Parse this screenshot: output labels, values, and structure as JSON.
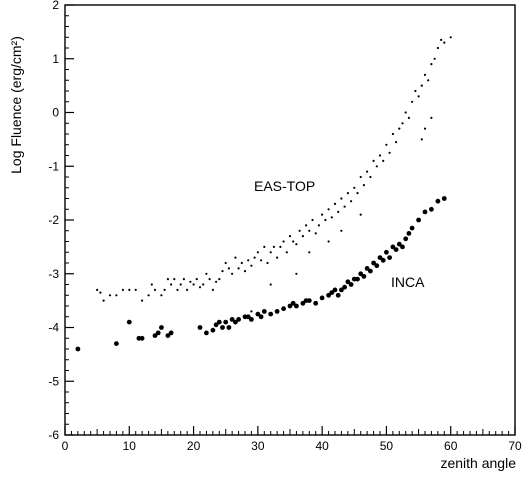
{
  "chart_data": {
    "type": "scatter",
    "xlabel": "zenith angle",
    "ylabel": "Log Fluence (erg/cm²)",
    "xlim": [
      0,
      70
    ],
    "ylim": [
      -6,
      2
    ],
    "x_ticks": [
      "0",
      "10",
      "20",
      "30",
      "40",
      "50",
      "60",
      "70"
    ],
    "y_ticks": [
      "-6",
      "-5",
      "-4",
      "-3",
      "-2",
      "-1",
      "0",
      "1",
      "2"
    ],
    "grid": false,
    "annotations": [
      {
        "text": "EAS-TOP",
        "series": "EAS-TOP"
      },
      {
        "text": "INCA",
        "series": "INCA"
      }
    ],
    "series": [
      {
        "name": "EAS-TOP",
        "marker": "small-dot",
        "points": [
          [
            5,
            -3.3
          ],
          [
            5.5,
            -3.35
          ],
          [
            6,
            -3.5
          ],
          [
            7,
            -3.4
          ],
          [
            8,
            -3.4
          ],
          [
            9,
            -3.3
          ],
          [
            10,
            -3.3
          ],
          [
            11,
            -3.3
          ],
          [
            12,
            -3.5
          ],
          [
            13,
            -3.4
          ],
          [
            13.5,
            -3.2
          ],
          [
            14,
            -3.3
          ],
          [
            15,
            -3.4
          ],
          [
            15.5,
            -3.3
          ],
          [
            16,
            -3.1
          ],
          [
            16.5,
            -3.2
          ],
          [
            17,
            -3.1
          ],
          [
            17.5,
            -3.3
          ],
          [
            18,
            -3.2
          ],
          [
            18.5,
            -3.1
          ],
          [
            19,
            -3.3
          ],
          [
            19.5,
            -3.15
          ],
          [
            20,
            -3.2
          ],
          [
            20.5,
            -3.1
          ],
          [
            21,
            -3.25
          ],
          [
            21.5,
            -3.2
          ],
          [
            22,
            -3.0
          ],
          [
            22.5,
            -3.1
          ],
          [
            23,
            -3.3
          ],
          [
            23.5,
            -3.15
          ],
          [
            24,
            -3.1
          ],
          [
            24.5,
            -2.95
          ],
          [
            25,
            -2.8
          ],
          [
            25.5,
            -2.9
          ],
          [
            26,
            -3.0
          ],
          [
            26.5,
            -2.7
          ],
          [
            27,
            -2.9
          ],
          [
            27.5,
            -2.8
          ],
          [
            28,
            -2.95
          ],
          [
            28.5,
            -2.75
          ],
          [
            29,
            -2.85
          ],
          [
            29.5,
            -2.7
          ],
          [
            30,
            -2.6
          ],
          [
            30.5,
            -2.75
          ],
          [
            31,
            -2.5
          ],
          [
            31.5,
            -2.8
          ],
          [
            32,
            -2.6
          ],
          [
            32.5,
            -2.5
          ],
          [
            33,
            -2.7
          ],
          [
            33.5,
            -2.5
          ],
          [
            34,
            -2.4
          ],
          [
            34.5,
            -2.6
          ],
          [
            35,
            -2.3
          ],
          [
            35.5,
            -2.4
          ],
          [
            36,
            -2.45
          ],
          [
            36.5,
            -2.2
          ],
          [
            37,
            -2.3
          ],
          [
            37.5,
            -2.1
          ],
          [
            38,
            -2.2
          ],
          [
            38.5,
            -2.0
          ],
          [
            39,
            -2.25
          ],
          [
            39.5,
            -2.1
          ],
          [
            40,
            -1.9
          ],
          [
            40.5,
            -2.0
          ],
          [
            41,
            -1.8
          ],
          [
            41.5,
            -1.95
          ],
          [
            42,
            -1.7
          ],
          [
            42.5,
            -1.85
          ],
          [
            43,
            -1.6
          ],
          [
            43.5,
            -1.75
          ],
          [
            44,
            -1.5
          ],
          [
            44.5,
            -1.65
          ],
          [
            45,
            -1.4
          ],
          [
            45.5,
            -1.5
          ],
          [
            46,
            -1.2
          ],
          [
            46.5,
            -1.35
          ],
          [
            47,
            -1.1
          ],
          [
            47.5,
            -1.2
          ],
          [
            48,
            -0.9
          ],
          [
            48.5,
            -1.0
          ],
          [
            49,
            -0.8
          ],
          [
            49.5,
            -0.9
          ],
          [
            50,
            -0.6
          ],
          [
            50.5,
            -0.75
          ],
          [
            51,
            -0.4
          ],
          [
            51.5,
            -0.55
          ],
          [
            52,
            -0.3
          ],
          [
            52.5,
            -0.2
          ],
          [
            53,
            0.0
          ],
          [
            53.5,
            -0.1
          ],
          [
            54,
            0.2
          ],
          [
            54.5,
            0.4
          ],
          [
            55,
            0.3
          ],
          [
            55.5,
            0.5
          ],
          [
            56,
            0.7
          ],
          [
            56.5,
            0.6
          ],
          [
            57,
            0.9
          ],
          [
            57.5,
            1.0
          ],
          [
            58,
            1.2
          ],
          [
            58.5,
            1.35
          ],
          [
            59,
            1.3
          ],
          [
            60,
            1.4
          ],
          [
            55.5,
            -0.5
          ],
          [
            56,
            -0.3
          ],
          [
            57,
            -0.1
          ],
          [
            29,
            -3.7
          ],
          [
            32,
            -3.2
          ],
          [
            36,
            -3.0
          ],
          [
            38,
            -2.6
          ],
          [
            41,
            -2.4
          ],
          [
            43,
            -2.2
          ],
          [
            46,
            -1.9
          ]
        ]
      },
      {
        "name": "INCA",
        "marker": "large-dot",
        "points": [
          [
            2,
            -4.4
          ],
          [
            8,
            -4.3
          ],
          [
            10,
            -3.9
          ],
          [
            11.5,
            -4.2
          ],
          [
            12,
            -4.2
          ],
          [
            14,
            -4.15
          ],
          [
            14.5,
            -4.1
          ],
          [
            15,
            -4.0
          ],
          [
            16,
            -4.15
          ],
          [
            16.5,
            -4.1
          ],
          [
            21,
            -4.0
          ],
          [
            22,
            -4.1
          ],
          [
            23,
            -4.05
          ],
          [
            23.5,
            -3.95
          ],
          [
            24,
            -3.9
          ],
          [
            24.5,
            -4.0
          ],
          [
            25,
            -3.9
          ],
          [
            25.5,
            -4.0
          ],
          [
            26,
            -3.85
          ],
          [
            26.5,
            -3.9
          ],
          [
            27,
            -3.85
          ],
          [
            28,
            -3.8
          ],
          [
            28.5,
            -3.8
          ],
          [
            29,
            -3.85
          ],
          [
            30,
            -3.75
          ],
          [
            30.5,
            -3.8
          ],
          [
            31,
            -3.7
          ],
          [
            32,
            -3.75
          ],
          [
            33,
            -3.7
          ],
          [
            34,
            -3.65
          ],
          [
            35,
            -3.6
          ],
          [
            35.5,
            -3.55
          ],
          [
            36,
            -3.6
          ],
          [
            37,
            -3.55
          ],
          [
            37.5,
            -3.5
          ],
          [
            38,
            -3.5
          ],
          [
            39,
            -3.55
          ],
          [
            40,
            -3.45
          ],
          [
            41,
            -3.4
          ],
          [
            41.5,
            -3.35
          ],
          [
            42,
            -3.3
          ],
          [
            42.5,
            -3.4
          ],
          [
            43,
            -3.3
          ],
          [
            43.5,
            -3.25
          ],
          [
            44,
            -3.15
          ],
          [
            44.5,
            -3.2
          ],
          [
            45,
            -3.1
          ],
          [
            45.5,
            -3.1
          ],
          [
            46,
            -3.0
          ],
          [
            46.5,
            -3.05
          ],
          [
            47,
            -2.9
          ],
          [
            47.5,
            -2.95
          ],
          [
            48,
            -2.8
          ],
          [
            48.5,
            -2.85
          ],
          [
            49,
            -2.7
          ],
          [
            49.5,
            -2.75
          ],
          [
            50,
            -2.6
          ],
          [
            50.5,
            -2.7
          ],
          [
            51,
            -2.5
          ],
          [
            51.5,
            -2.55
          ],
          [
            52,
            -2.45
          ],
          [
            52.5,
            -2.5
          ],
          [
            53,
            -2.35
          ],
          [
            53.5,
            -2.25
          ],
          [
            54,
            -2.15
          ],
          [
            55,
            -2.0
          ],
          [
            56,
            -1.85
          ],
          [
            57,
            -1.8
          ],
          [
            58,
            -1.65
          ],
          [
            59,
            -1.6
          ]
        ]
      }
    ]
  }
}
